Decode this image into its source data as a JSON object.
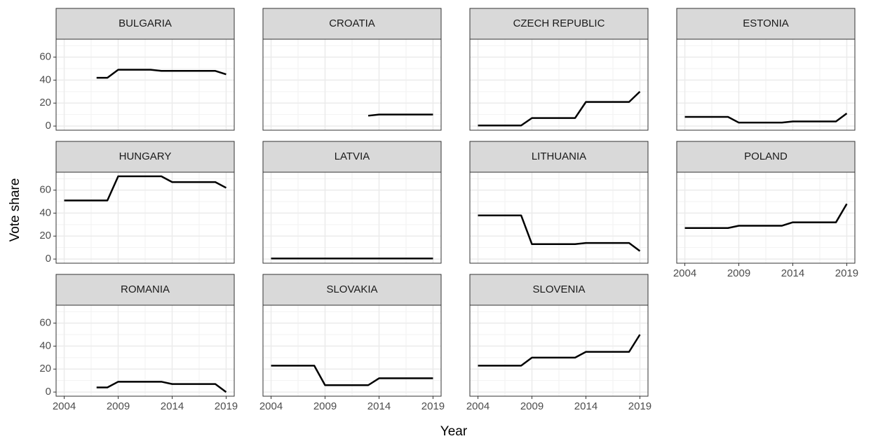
{
  "chart_data": {
    "type": "line",
    "xlabel": "Year",
    "ylabel": "Vote share",
    "xlim": [
      2003.25,
      2019.75
    ],
    "ylim": [
      -3.6,
      75.6
    ],
    "xticks": [
      2004,
      2009,
      2014,
      2019
    ],
    "yticks": [
      0,
      20,
      40,
      60
    ],
    "grid": true,
    "color": "#000000",
    "panels": [
      {
        "title": "BULGARIA",
        "x": [
          2007,
          2008,
          2009,
          2010,
          2011,
          2012,
          2013,
          2014,
          2015,
          2016,
          2017,
          2018,
          2019
        ],
        "values": [
          42,
          42,
          49,
          49,
          49,
          49,
          48,
          48,
          48,
          48,
          48,
          48,
          45
        ]
      },
      {
        "title": "CROATIA",
        "x": [
          2013,
          2014,
          2015,
          2016,
          2017,
          2018,
          2019
        ],
        "values": [
          9,
          10,
          10,
          10,
          10,
          10,
          10
        ]
      },
      {
        "title": "CZECH REPUBLIC",
        "x": [
          2004,
          2005,
          2006,
          2007,
          2008,
          2009,
          2010,
          2011,
          2012,
          2013,
          2014,
          2015,
          2016,
          2017,
          2018,
          2019
        ],
        "values": [
          0.5,
          0.5,
          0.5,
          0.5,
          0.5,
          7,
          7,
          7,
          7,
          7,
          21,
          21,
          21,
          21,
          21,
          30
        ]
      },
      {
        "title": "ESTONIA",
        "x": [
          2004,
          2005,
          2006,
          2007,
          2008,
          2009,
          2010,
          2011,
          2012,
          2013,
          2014,
          2015,
          2016,
          2017,
          2018,
          2019
        ],
        "values": [
          8,
          8,
          8,
          8,
          8,
          3,
          3,
          3,
          3,
          3,
          4,
          4,
          4,
          4,
          4,
          11
        ]
      },
      {
        "title": "HUNGARY",
        "x": [
          2004,
          2005,
          2006,
          2007,
          2008,
          2009,
          2010,
          2011,
          2012,
          2013,
          2014,
          2015,
          2016,
          2017,
          2018,
          2019
        ],
        "values": [
          51,
          51,
          51,
          51,
          51,
          72,
          72,
          72,
          72,
          72,
          67,
          67,
          67,
          67,
          67,
          62
        ]
      },
      {
        "title": "LATVIA",
        "x": [
          2004,
          2005,
          2006,
          2007,
          2008,
          2009,
          2010,
          2011,
          2012,
          2013,
          2014,
          2015,
          2016,
          2017,
          2018,
          2019
        ],
        "values": [
          0.5,
          0.5,
          0.5,
          0.5,
          0.5,
          0.5,
          0.5,
          0.5,
          0.5,
          0.5,
          0.5,
          0.5,
          0.5,
          0.5,
          0.5,
          0.5
        ]
      },
      {
        "title": "LITHUANIA",
        "x": [
          2004,
          2005,
          2006,
          2007,
          2008,
          2009,
          2010,
          2011,
          2012,
          2013,
          2014,
          2015,
          2016,
          2017,
          2018,
          2019
        ],
        "values": [
          38,
          38,
          38,
          38,
          38,
          13,
          13,
          13,
          13,
          13,
          14,
          14,
          14,
          14,
          14,
          7
        ]
      },
      {
        "title": "POLAND",
        "x": [
          2004,
          2005,
          2006,
          2007,
          2008,
          2009,
          2010,
          2011,
          2012,
          2013,
          2014,
          2015,
          2016,
          2017,
          2018,
          2019
        ],
        "values": [
          27,
          27,
          27,
          27,
          27,
          29,
          29,
          29,
          29,
          29,
          32,
          32,
          32,
          32,
          32,
          48
        ]
      },
      {
        "title": "ROMANIA",
        "x": [
          2007,
          2008,
          2009,
          2010,
          2011,
          2012,
          2013,
          2014,
          2015,
          2016,
          2017,
          2018,
          2019
        ],
        "values": [
          4,
          4,
          9,
          9,
          9,
          9,
          9,
          7,
          7,
          7,
          7,
          7,
          0
        ]
      },
      {
        "title": "SLOVAKIA",
        "x": [
          2004,
          2005,
          2006,
          2007,
          2008,
          2009,
          2010,
          2011,
          2012,
          2013,
          2014,
          2015,
          2016,
          2017,
          2018,
          2019
        ],
        "values": [
          23,
          23,
          23,
          23,
          23,
          6,
          6,
          6,
          6,
          6,
          12,
          12,
          12,
          12,
          12,
          12
        ]
      },
      {
        "title": "SLOVENIA",
        "x": [
          2004,
          2005,
          2006,
          2007,
          2008,
          2009,
          2010,
          2011,
          2012,
          2013,
          2014,
          2015,
          2016,
          2017,
          2018,
          2019
        ],
        "values": [
          23,
          23,
          23,
          23,
          23,
          30,
          30,
          30,
          30,
          30,
          35,
          35,
          35,
          35,
          35,
          50
        ]
      }
    ]
  }
}
